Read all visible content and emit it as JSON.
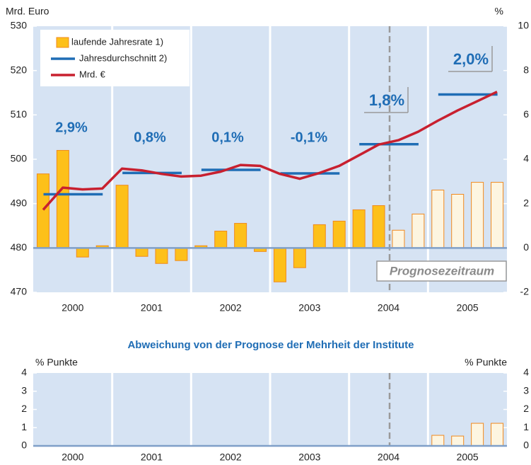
{
  "chart_data": [
    {
      "type": "combo",
      "y_label": "Mrd. Euro",
      "y2_label": "%",
      "categories": [
        "2000",
        "2001",
        "2002",
        "2003",
        "2004",
        "2005"
      ],
      "ylim": [
        470,
        530
      ],
      "yticks": [
        470,
        480,
        490,
        500,
        510,
        520,
        530
      ],
      "y2lim": [
        -2,
        10
      ],
      "y2ticks": [
        -2,
        0,
        2,
        4,
        6,
        8,
        10
      ],
      "legend": "upper left",
      "series": [
        {
          "name": "laufende Jahresrate 1)",
          "type": "bar",
          "axis": "y2",
          "color": "#fdc01a",
          "edge_color": "#f08a1f",
          "values": [
            [
              3.34,
              4.4,
              -0.41,
              0.1
            ],
            [
              2.83,
              -0.38,
              -0.7,
              -0.57
            ],
            [
              0.1,
              0.76,
              1.11,
              -0.16
            ],
            [
              -1.53,
              -0.89,
              1.05,
              1.21
            ],
            [
              1.72,
              1.91,
              0.8,
              1.53
            ],
            [
              2.61,
              2.42,
              2.96,
              2.96
            ]
          ],
          "point_colors": [
            [
              "#fdc01a",
              "#fdc01a",
              "#fdc01a",
              "#fdc01a"
            ],
            [
              "#fdc01a",
              "#fdc01a",
              "#fdc01a",
              "#fdc01a"
            ],
            [
              "#fdc01a",
              "#fdc01a",
              "#fdc01a",
              "#fdc01a"
            ],
            [
              "#fdc01a",
              "#fdc01a",
              "#fdc01a",
              "#fdc01a"
            ],
            [
              "#fdc01a",
              "#fdc01a",
              "#fdf5e0",
              "#fdf5e0"
            ],
            [
              "#fdf5e0",
              "#fdf5e0",
              "#fdf5e0",
              "#fdf5e0"
            ]
          ]
        },
        {
          "name": "Jahresdurchschnitt 2)",
          "type": "hline",
          "color": "#1f6db5",
          "values": [
            492.1,
            496.9,
            497.6,
            496.8,
            503.4,
            514.6
          ]
        },
        {
          "name": "Mrd. €",
          "type": "line",
          "color": "#c8202f",
          "values": [
            [
              488.6,
              493.6,
              493.2,
              493.4
            ],
            [
              497.9,
              497.5,
              496.7,
              496.1
            ],
            [
              496.3,
              497.2,
              498.7,
              498.5
            ],
            [
              496.7,
              495.6,
              496.9,
              498.5
            ],
            [
              500.9,
              503.3,
              504.3,
              506.2
            ],
            [
              508.7,
              511.0,
              513.1,
              515.2
            ]
          ]
        }
      ],
      "annotations": [
        "2,9%",
        "0,8%",
        "0,1%",
        "-0,1%",
        "1,8%",
        "2,0%",
        "Prognosezeitraum"
      ]
    },
    {
      "type": "bar",
      "title": "Abweichung von der Prognose der Mehrheit der Institute",
      "y_label": "% Punkte",
      "y2_label": "% Punkte",
      "categories": [
        "2000",
        "2001",
        "2002",
        "2003",
        "2004",
        "2005"
      ],
      "ylim": [
        0,
        4
      ],
      "yticks": [
        0,
        1,
        2,
        3,
        4
      ],
      "y2lim": [
        0,
        4
      ],
      "y2ticks": [
        0,
        1,
        2,
        3,
        4
      ],
      "series": [
        {
          "type": "bar",
          "color": "#fdf5e0",
          "edge_color": "#f08a1f",
          "values": [
            [
              0,
              0,
              0,
              0
            ],
            [
              0,
              0,
              0,
              0
            ],
            [
              0,
              0,
              0,
              0
            ],
            [
              0,
              0,
              0,
              0
            ],
            [
              0,
              0,
              0,
              0
            ],
            [
              0.58,
              0.54,
              1.24,
              1.24
            ]
          ]
        }
      ]
    }
  ]
}
